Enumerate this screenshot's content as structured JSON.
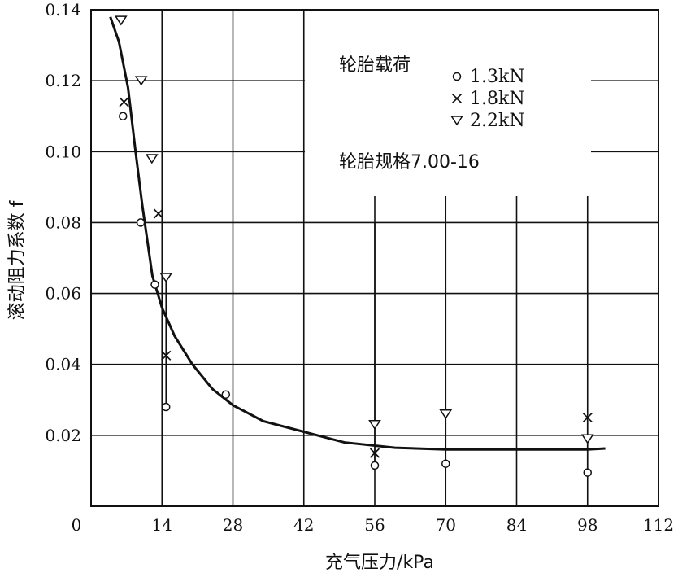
{
  "chart_data": {
    "type": "scatter",
    "xlabel": "充气压力/kPa",
    "ylabel": "滚动阻力系数 f",
    "xlim": [
      0,
      112
    ],
    "ylim": [
      0,
      0.14
    ],
    "x_ticks": [
      {
        "value": 0,
        "label": "0"
      },
      {
        "value": 14,
        "label": "14"
      },
      {
        "value": 28,
        "label": "28"
      },
      {
        "value": 42,
        "label": "42"
      },
      {
        "value": 56,
        "label": "56"
      },
      {
        "value": 70,
        "label": "70"
      },
      {
        "value": 84,
        "label": "84"
      },
      {
        "value": 98,
        "label": "98"
      },
      {
        "value": 112,
        "label": "112"
      }
    ],
    "y_ticks": [
      {
        "value": 0.02,
        "label": "0.02"
      },
      {
        "value": 0.04,
        "label": "0.04"
      },
      {
        "value": 0.06,
        "label": "0.06"
      },
      {
        "value": 0.08,
        "label": "0.08"
      },
      {
        "value": 0.1,
        "label": "0.10"
      },
      {
        "value": 0.12,
        "label": "0.12"
      },
      {
        "value": 0.14,
        "label": "0.14"
      }
    ],
    "grid": true,
    "legend": {
      "title": "轮胎载荷",
      "note": "轮胎规格7.00-16"
    },
    "series": [
      {
        "name": "1.3kN",
        "marker": "circle",
        "points": [
          {
            "x": 6.3,
            "y": 0.11
          },
          {
            "x": 9.8,
            "y": 0.08
          },
          {
            "x": 12.6,
            "y": 0.0625
          },
          {
            "x": 14.8,
            "y": 0.028
          },
          {
            "x": 26.6,
            "y": 0.0315
          },
          {
            "x": 56.0,
            "y": 0.0115
          },
          {
            "x": 70.0,
            "y": 0.012
          },
          {
            "x": 98.0,
            "y": 0.0095
          }
        ]
      },
      {
        "name": "1.8kN",
        "marker": "cross",
        "points": [
          {
            "x": 6.5,
            "y": 0.114
          },
          {
            "x": 13.3,
            "y": 0.0825
          },
          {
            "x": 14.8,
            "y": 0.0425
          },
          {
            "x": 56.0,
            "y": 0.015
          },
          {
            "x": 98.0,
            "y": 0.025
          }
        ]
      },
      {
        "name": "2.2kN",
        "marker": "triangle-down",
        "points": [
          {
            "x": 5.9,
            "y": 0.137
          },
          {
            "x": 9.9,
            "y": 0.12
          },
          {
            "x": 12.0,
            "y": 0.098
          },
          {
            "x": 14.8,
            "y": 0.0645
          },
          {
            "x": 56.0,
            "y": 0.023
          },
          {
            "x": 70.0,
            "y": 0.026
          },
          {
            "x": 98.0,
            "y": 0.019
          }
        ]
      }
    ],
    "fit_curve": {
      "points": [
        [
          3.8,
          0.138
        ],
        [
          5.5,
          0.131
        ],
        [
          7.3,
          0.118
        ],
        [
          8.7,
          0.101
        ],
        [
          10.1,
          0.085
        ],
        [
          11.0,
          0.076
        ],
        [
          12.1,
          0.065
        ],
        [
          14.0,
          0.056
        ],
        [
          16.5,
          0.048
        ],
        [
          20.0,
          0.04
        ],
        [
          24.0,
          0.033
        ],
        [
          28.0,
          0.0285
        ],
        [
          34.0,
          0.024
        ],
        [
          42.0,
          0.021
        ],
        [
          50.0,
          0.018
        ],
        [
          60.0,
          0.0165
        ],
        [
          70.0,
          0.016
        ],
        [
          84.0,
          0.016
        ],
        [
          98.0,
          0.016
        ],
        [
          101.5,
          0.0163
        ]
      ]
    },
    "error_bars": [
      {
        "x": 14.8,
        "y_low": 0.028,
        "y_high": 0.0645
      },
      {
        "x": 56.0,
        "y_low": 0.0115,
        "y_high": 0.08
      },
      {
        "x": 70.0,
        "y_low": 0.012,
        "y_high": 0.08
      },
      {
        "x": 98.0,
        "y_low": 0.0095,
        "y_high": 0.025
      }
    ]
  }
}
